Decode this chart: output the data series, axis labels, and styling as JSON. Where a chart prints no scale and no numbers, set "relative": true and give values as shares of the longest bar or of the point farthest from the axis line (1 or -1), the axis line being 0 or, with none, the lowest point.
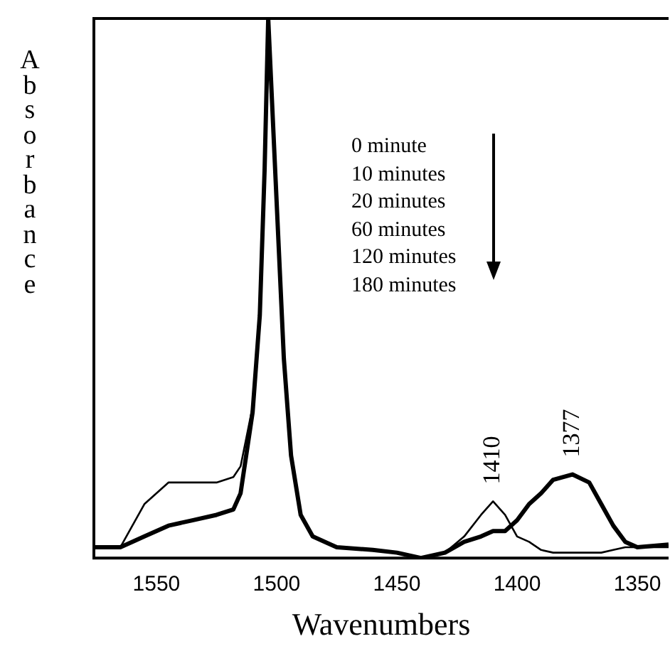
{
  "chart_data": {
    "type": "line",
    "xlabel": "Wavenumbers",
    "ylabel": "Absorbance",
    "relative": true,
    "xlim": [
      1576,
      1337
    ],
    "xticks": [
      1550,
      1500,
      1450,
      1400,
      1350
    ],
    "grid": false,
    "legend": false,
    "tick_labels": "x",
    "marker": "none",
    "line_style": "solid",
    "x": [
      1576,
      1565,
      1555,
      1545,
      1535,
      1525,
      1518,
      1515,
      1510,
      1507,
      1505,
      1503.5,
      1500,
      1497,
      1494,
      1490,
      1485,
      1475,
      1460,
      1450,
      1440,
      1430,
      1422,
      1415,
      1410,
      1405,
      1400,
      1395,
      1390,
      1385,
      1377,
      1370,
      1365,
      1360,
      1355,
      1350,
      1337
    ],
    "series": [
      {
        "color": "#000000",
        "values": [
          0.02,
          0.02,
          0.1,
          0.14,
          0.14,
          0.14,
          0.15,
          0.17,
          0.28,
          0.45,
          0.72,
          1,
          0.66,
          0.37,
          0.19,
          0.08,
          0.04,
          0.02,
          0.015,
          0.01,
          0.0,
          0.01,
          0.04,
          0.08,
          0.105,
          0.08,
          0.04,
          0.03,
          0.015,
          0.01,
          0.01,
          0.01,
          0.01,
          0.015,
          0.02,
          0.02,
          0.02
        ]
      },
      {
        "color": "#000000",
        "values": [
          0.02,
          0.02,
          0.04,
          0.06,
          0.07,
          0.08,
          0.09,
          0.12,
          0.27,
          0.45,
          0.72,
          1,
          0.66,
          0.37,
          0.19,
          0.08,
          0.04,
          0.02,
          0.015,
          0.01,
          0.0,
          0.01,
          0.03,
          0.04,
          0.05,
          0.05,
          0.07,
          0.1,
          0.12,
          0.145,
          0.155,
          0.14,
          0.1,
          0.06,
          0.03,
          0.02,
          0.025
        ]
      }
    ],
    "annotations": [
      {
        "text": "1410",
        "x": 1410,
        "y": 0.105
      },
      {
        "text": "1377",
        "x": 1377,
        "y": 0.155
      },
      "0 minute",
      "10 minutes",
      "20 minutes",
      "60 minutes",
      "120 minutes",
      "180 minutes"
    ]
  }
}
